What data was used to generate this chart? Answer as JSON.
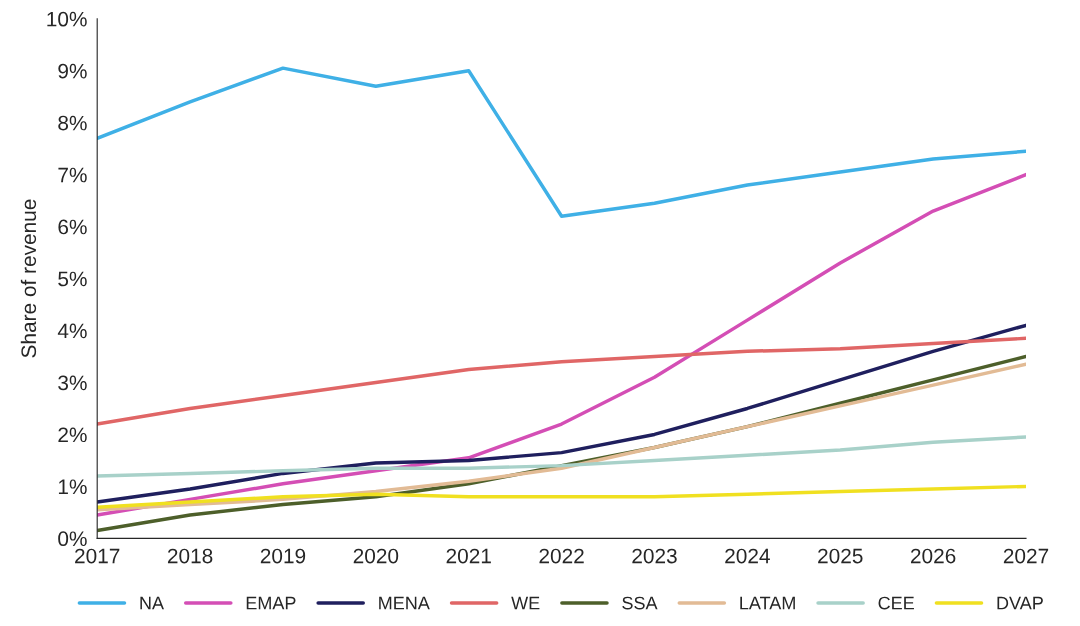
{
  "chart_data": {
    "type": "line",
    "ylabel": "Share of revenue",
    "x": [
      2017,
      2018,
      2019,
      2020,
      2021,
      2022,
      2023,
      2024,
      2025,
      2026,
      2027
    ],
    "xlim": [
      2017,
      2027
    ],
    "xticks": [
      2017,
      2018,
      2019,
      2020,
      2021,
      2022,
      2023,
      2024,
      2025,
      2026,
      2027
    ],
    "ylim": [
      0,
      10
    ],
    "yticks": [
      {
        "value": 0,
        "label": "0%"
      },
      {
        "value": 1,
        "label": "1%"
      },
      {
        "value": 2,
        "label": "2%"
      },
      {
        "value": 3,
        "label": "3%"
      },
      {
        "value": 4,
        "label": "4%"
      },
      {
        "value": 5,
        "label": "5%"
      },
      {
        "value": 6,
        "label": "6%"
      },
      {
        "value": 7,
        "label": "7%"
      },
      {
        "value": 8,
        "label": "8%"
      },
      {
        "value": 9,
        "label": "9%"
      },
      {
        "value": 10,
        "label": "10%"
      }
    ],
    "grid": false,
    "legend": "bottom",
    "marker": "none",
    "line_style": "solid",
    "series": [
      {
        "name": "NA",
        "color": "#3fb0e6",
        "values": [
          7.7,
          8.4,
          9.05,
          8.7,
          9.0,
          6.2,
          6.45,
          6.8,
          7.05,
          7.3,
          7.45
        ]
      },
      {
        "name": "EMAP",
        "color": "#d44eb5",
        "values": [
          0.45,
          0.75,
          1.05,
          1.3,
          1.55,
          2.2,
          3.1,
          4.2,
          5.3,
          6.3,
          7.0
        ]
      },
      {
        "name": "MENA",
        "color": "#1f1f5e",
        "values": [
          0.7,
          0.95,
          1.25,
          1.45,
          1.5,
          1.65,
          2.0,
          2.5,
          3.05,
          3.6,
          4.1
        ]
      },
      {
        "name": "WE",
        "color": "#e06666",
        "values": [
          2.2,
          2.5,
          2.75,
          3.0,
          3.25,
          3.4,
          3.5,
          3.6,
          3.65,
          3.75,
          3.85
        ]
      },
      {
        "name": "SSA",
        "color": "#4d5f2a",
        "values": [
          0.15,
          0.45,
          0.65,
          0.8,
          1.05,
          1.4,
          1.75,
          2.15,
          2.6,
          3.05,
          3.5
        ]
      },
      {
        "name": "LATAM",
        "color": "#e2bb95",
        "values": [
          0.55,
          0.65,
          0.75,
          0.9,
          1.1,
          1.35,
          1.75,
          2.15,
          2.55,
          2.95,
          3.35
        ]
      },
      {
        "name": "CEE",
        "color": "#a8d1c9",
        "values": [
          1.2,
          1.25,
          1.3,
          1.35,
          1.35,
          1.4,
          1.5,
          1.6,
          1.7,
          1.85,
          1.95
        ]
      },
      {
        "name": "DVAP",
        "color": "#f0e020",
        "values": [
          0.6,
          0.7,
          0.8,
          0.85,
          0.8,
          0.8,
          0.8,
          0.85,
          0.9,
          0.95,
          1.0
        ]
      }
    ]
  }
}
